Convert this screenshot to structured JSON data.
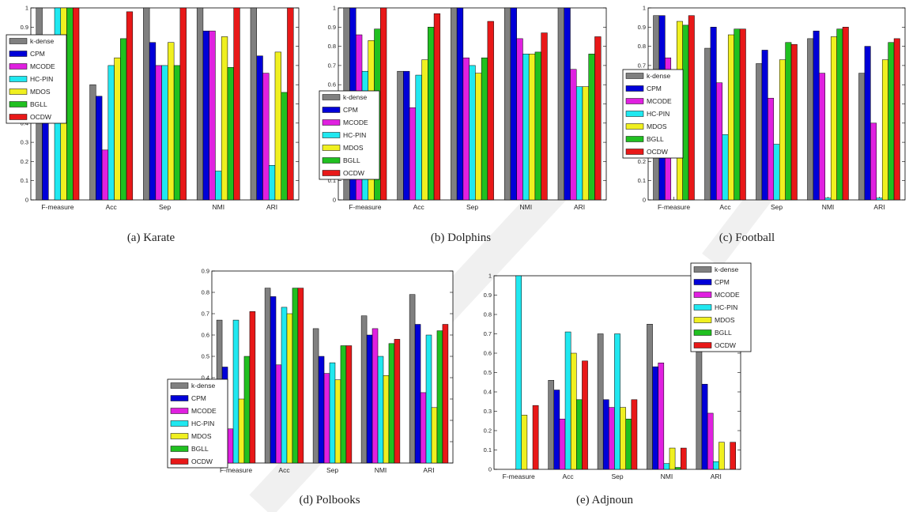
{
  "colors": {
    "k-dense": "#808080",
    "CPM": "#0000d8",
    "MCODE": "#e020e0",
    "HC-PIN": "#20e8f0",
    "MDOS": "#f0f020",
    "BGLL": "#20c020",
    "OCDW": "#e81818"
  },
  "chart_data": [
    {
      "type": "bar",
      "caption": "(a) Karate",
      "categories": [
        "F-measure",
        "Acc",
        "Sep",
        "NMI",
        "ARI"
      ],
      "ylim": [
        0,
        1
      ],
      "yticks": [
        "0",
        "0.1",
        "0.2",
        "0.3",
        "0.4",
        "0.5",
        "0.6",
        "0.7",
        "0.8",
        "0.9",
        "1"
      ],
      "grid": false,
      "legend_position": "top-left",
      "series": [
        {
          "name": "k-dense",
          "values": [
            1.0,
            0.6,
            1.0,
            1.0,
            1.0
          ]
        },
        {
          "name": "CPM",
          "values": [
            0.4,
            0.54,
            0.82,
            0.88,
            0.75
          ]
        },
        {
          "name": "MCODE",
          "values": [
            0.0,
            0.26,
            0.7,
            0.88,
            0.66
          ]
        },
        {
          "name": "HC-PIN",
          "values": [
            1.0,
            0.7,
            0.7,
            0.15,
            0.18
          ]
        },
        {
          "name": "MDOS",
          "values": [
            1.0,
            0.74,
            0.82,
            0.85,
            0.77
          ]
        },
        {
          "name": "BGLL",
          "values": [
            1.0,
            0.84,
            0.7,
            0.69,
            0.56
          ]
        },
        {
          "name": "OCDW",
          "values": [
            1.0,
            0.98,
            1.0,
            1.0,
            1.0
          ]
        }
      ]
    },
    {
      "type": "bar",
      "caption": "(b) Dolphins",
      "categories": [
        "F-measure",
        "Acc",
        "Sep",
        "NMI",
        "ARI"
      ],
      "ylim": [
        0,
        1
      ],
      "yticks": [
        "0",
        "0.1",
        "0.2",
        "0.3",
        "0.4",
        "0.5",
        "0.6",
        "0.7",
        "0.8",
        "0.9",
        "1"
      ],
      "grid": false,
      "legend_position": "left",
      "series": [
        {
          "name": "k-dense",
          "values": [
            1.0,
            0.67,
            1.0,
            1.0,
            1.0
          ]
        },
        {
          "name": "CPM",
          "values": [
            1.0,
            0.67,
            1.0,
            1.0,
            1.0
          ]
        },
        {
          "name": "MCODE",
          "values": [
            0.86,
            0.48,
            0.74,
            0.84,
            0.68
          ]
        },
        {
          "name": "HC-PIN",
          "values": [
            0.67,
            0.65,
            0.7,
            0.76,
            0.59
          ]
        },
        {
          "name": "MDOS",
          "values": [
            0.83,
            0.73,
            0.66,
            0.76,
            0.59
          ]
        },
        {
          "name": "BGLL",
          "values": [
            0.89,
            0.9,
            0.74,
            0.77,
            0.76
          ]
        },
        {
          "name": "OCDW",
          "values": [
            1.0,
            0.97,
            0.93,
            0.87,
            0.85
          ]
        }
      ]
    },
    {
      "type": "bar",
      "caption": "(c) Football",
      "categories": [
        "F-measure",
        "Acc",
        "Sep",
        "NMI",
        "ARI"
      ],
      "ylim": [
        0,
        1
      ],
      "yticks": [
        "0",
        "0.1",
        "0.2",
        "0.3",
        "0.4",
        "0.5",
        "0.6",
        "0.7",
        "0.8",
        "0.9",
        "1"
      ],
      "grid": false,
      "legend_position": "left",
      "series": [
        {
          "name": "k-dense",
          "values": [
            0.96,
            0.79,
            0.71,
            0.84,
            0.66
          ]
        },
        {
          "name": "CPM",
          "values": [
            0.96,
            0.9,
            0.78,
            0.88,
            0.8
          ]
        },
        {
          "name": "MCODE",
          "values": [
            0.74,
            0.61,
            0.53,
            0.66,
            0.4
          ]
        },
        {
          "name": "HC-PIN",
          "values": [
            0.0,
            0.34,
            0.29,
            0.01,
            0.01
          ]
        },
        {
          "name": "MDOS",
          "values": [
            0.93,
            0.86,
            0.73,
            0.85,
            0.73
          ]
        },
        {
          "name": "BGLL",
          "values": [
            0.91,
            0.89,
            0.82,
            0.89,
            0.82
          ]
        },
        {
          "name": "OCDW",
          "values": [
            0.96,
            0.89,
            0.81,
            0.9,
            0.84
          ]
        }
      ]
    },
    {
      "type": "bar",
      "caption": "(d) Polbooks",
      "categories": [
        "F-measure",
        "Acc",
        "Sep",
        "NMI",
        "ARI"
      ],
      "ylim": [
        0,
        0.9
      ],
      "yticks": [
        "0",
        "0.1",
        "0.2",
        "0.3",
        "0.4",
        "0.5",
        "0.6",
        "0.7",
        "0.8",
        "0.9"
      ],
      "grid": false,
      "legend_position": "bottom-left",
      "series": [
        {
          "name": "k-dense",
          "values": [
            0.67,
            0.82,
            0.63,
            0.69,
            0.79
          ]
        },
        {
          "name": "CPM",
          "values": [
            0.45,
            0.78,
            0.5,
            0.6,
            0.65
          ]
        },
        {
          "name": "MCODE",
          "values": [
            0.16,
            0.46,
            0.42,
            0.63,
            0.33
          ]
        },
        {
          "name": "HC-PIN",
          "values": [
            0.67,
            0.73,
            0.47,
            0.5,
            0.6
          ]
        },
        {
          "name": "MDOS",
          "values": [
            0.3,
            0.7,
            0.39,
            0.41,
            0.26
          ]
        },
        {
          "name": "BGLL",
          "values": [
            0.5,
            0.82,
            0.55,
            0.56,
            0.62
          ]
        },
        {
          "name": "OCDW",
          "values": [
            0.71,
            0.82,
            0.55,
            0.58,
            0.65
          ]
        }
      ]
    },
    {
      "type": "bar",
      "caption": "(e) Adjnoun",
      "categories": [
        "F-measure",
        "Acc",
        "Sep",
        "NMI",
        "ARI"
      ],
      "ylim": [
        0,
        1
      ],
      "yticks": [
        "0",
        "0.1",
        "0.2",
        "0.3",
        "0.4",
        "0.5",
        "0.6",
        "0.7",
        "0.8",
        "0.9",
        "1"
      ],
      "grid": false,
      "legend_position": "top-right",
      "series": [
        {
          "name": "k-dense",
          "values": [
            0.0,
            0.46,
            0.7,
            0.75,
            0.63
          ]
        },
        {
          "name": "CPM",
          "values": [
            0.0,
            0.41,
            0.36,
            0.53,
            0.44
          ]
        },
        {
          "name": "MCODE",
          "values": [
            0.0,
            0.26,
            0.32,
            0.55,
            0.29
          ]
        },
        {
          "name": "HC-PIN",
          "values": [
            1.0,
            0.71,
            0.7,
            0.03,
            0.04
          ]
        },
        {
          "name": "MDOS",
          "values": [
            0.28,
            0.6,
            0.32,
            0.11,
            0.14
          ]
        },
        {
          "name": "BGLL",
          "values": [
            0.0,
            0.36,
            0.26,
            0.01,
            0.0
          ]
        },
        {
          "name": "OCDW",
          "values": [
            0.33,
            0.56,
            0.36,
            0.11,
            0.14
          ]
        }
      ]
    }
  ]
}
